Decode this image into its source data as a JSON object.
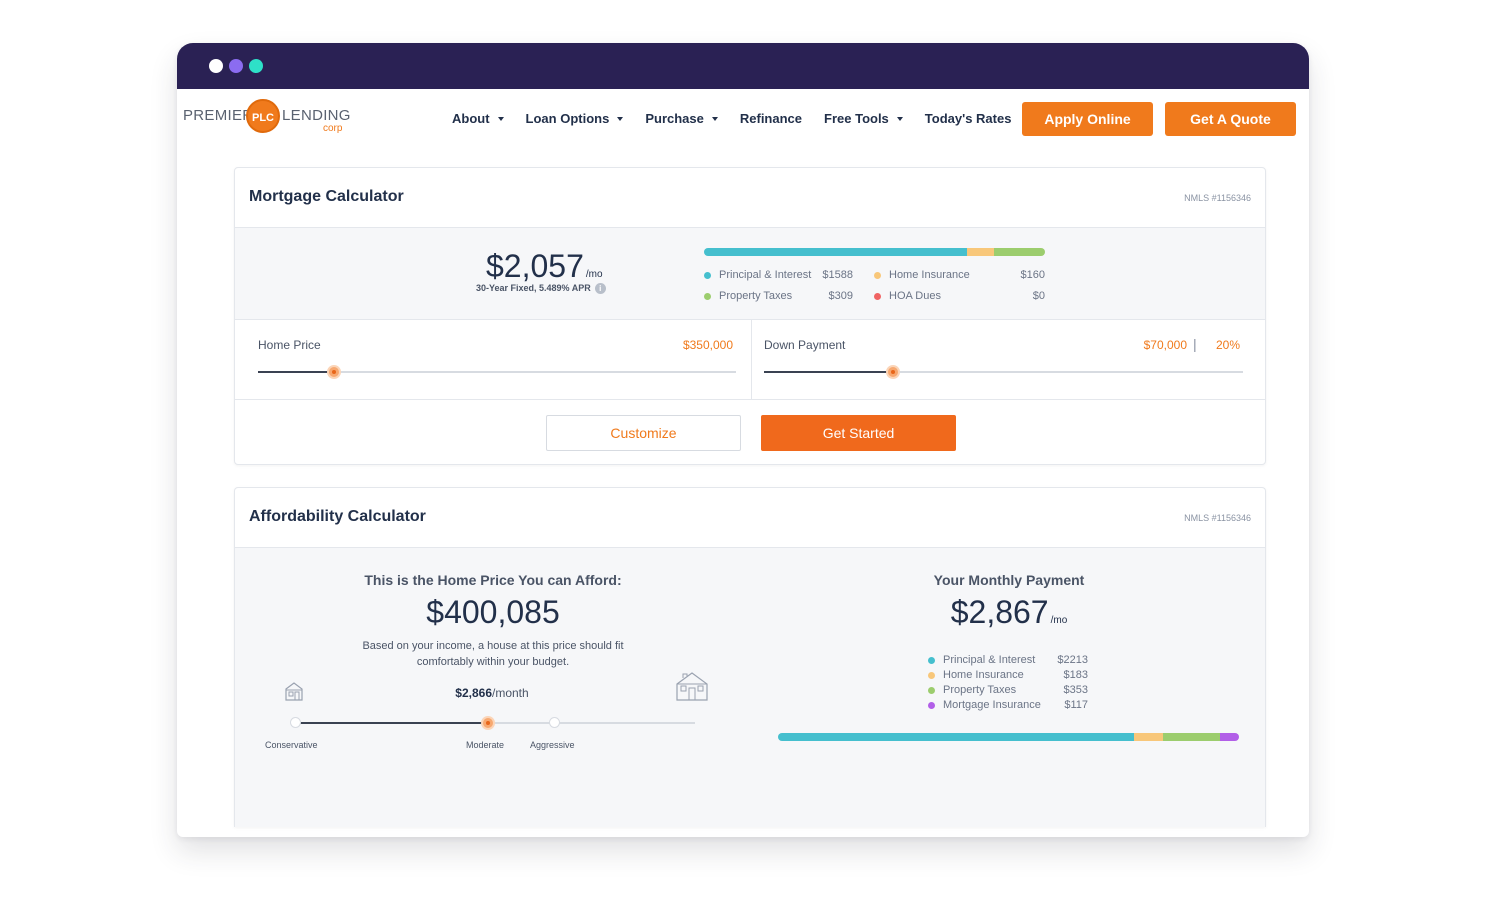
{
  "nav": {
    "logo": {
      "premier": "PREMIER",
      "badge": "PLC",
      "lending": "LENDING",
      "corp": "corp"
    },
    "menu": [
      {
        "label": "About",
        "dropdown": true
      },
      {
        "label": "Loan Options",
        "dropdown": true
      },
      {
        "label": "Purchase",
        "dropdown": true
      },
      {
        "label": "Refinance",
        "dropdown": false
      },
      {
        "label": "Free Tools",
        "dropdown": true
      },
      {
        "label": "Today's Rates",
        "dropdown": false
      }
    ],
    "apply_label": "Apply Online",
    "quote_label": "Get A Quote"
  },
  "colors": {
    "accent": "#f07a1c",
    "chrome": "#2a2154",
    "principal": "#45bfce",
    "insurance": "#f8c77a",
    "taxes": "#9ccd6e",
    "hoa": "#f06464",
    "mortgage_insurance": "#b25fe8"
  },
  "mortgage_calculator": {
    "title": "Mortgage Calculator",
    "nmls": "NMLS #1156346",
    "monthly_amount": "$2,057",
    "per_month": "/mo",
    "loan_term": "30-Year Fixed, 5.489% APR",
    "breakdown_bar": [
      0.77,
      0.08,
      0.15,
      0.0
    ],
    "breakdown": [
      {
        "label": "Principal & Interest",
        "value": "$1588"
      },
      {
        "label": "Home Insurance",
        "value": "$160"
      },
      {
        "label": "Property Taxes",
        "value": "$309"
      },
      {
        "label": "HOA Dues",
        "value": "$0"
      }
    ],
    "home_price": {
      "label": "Home Price",
      "value": "$350,000",
      "slider_fraction": 0.16
    },
    "down_payment": {
      "label": "Down Payment",
      "value": "$70,000",
      "percent": "20%",
      "separator": "|",
      "slider_fraction": 0.27
    },
    "customize_label": "Customize",
    "get_started_label": "Get Started"
  },
  "affordability_calculator": {
    "title": "Affordability Calculator",
    "nmls": "NMLS #1156346",
    "afford_heading": "This is the Home Price You can Afford:",
    "afford_amount": "$400,085",
    "afford_desc": "Based on your income, a house at this price should fit comfortably within your budget.",
    "monthly_value": "$2,866",
    "monthly_unit": "/month",
    "slider_fraction": 0.48,
    "stops": [
      "Conservative",
      "Moderate",
      "Aggressive"
    ],
    "payment_heading": "Your Monthly Payment",
    "payment_amount": "$2,867",
    "per_month": "/mo",
    "breakdown": [
      {
        "label": "Principal & Interest",
        "value": "$2213"
      },
      {
        "label": "Home Insurance",
        "value": "$183"
      },
      {
        "label": "Property Taxes",
        "value": "$353"
      },
      {
        "label": "Mortgage Insurance",
        "value": "$117"
      }
    ],
    "breakdown_bar": [
      0.772,
      0.064,
      0.123,
      0.041
    ]
  }
}
